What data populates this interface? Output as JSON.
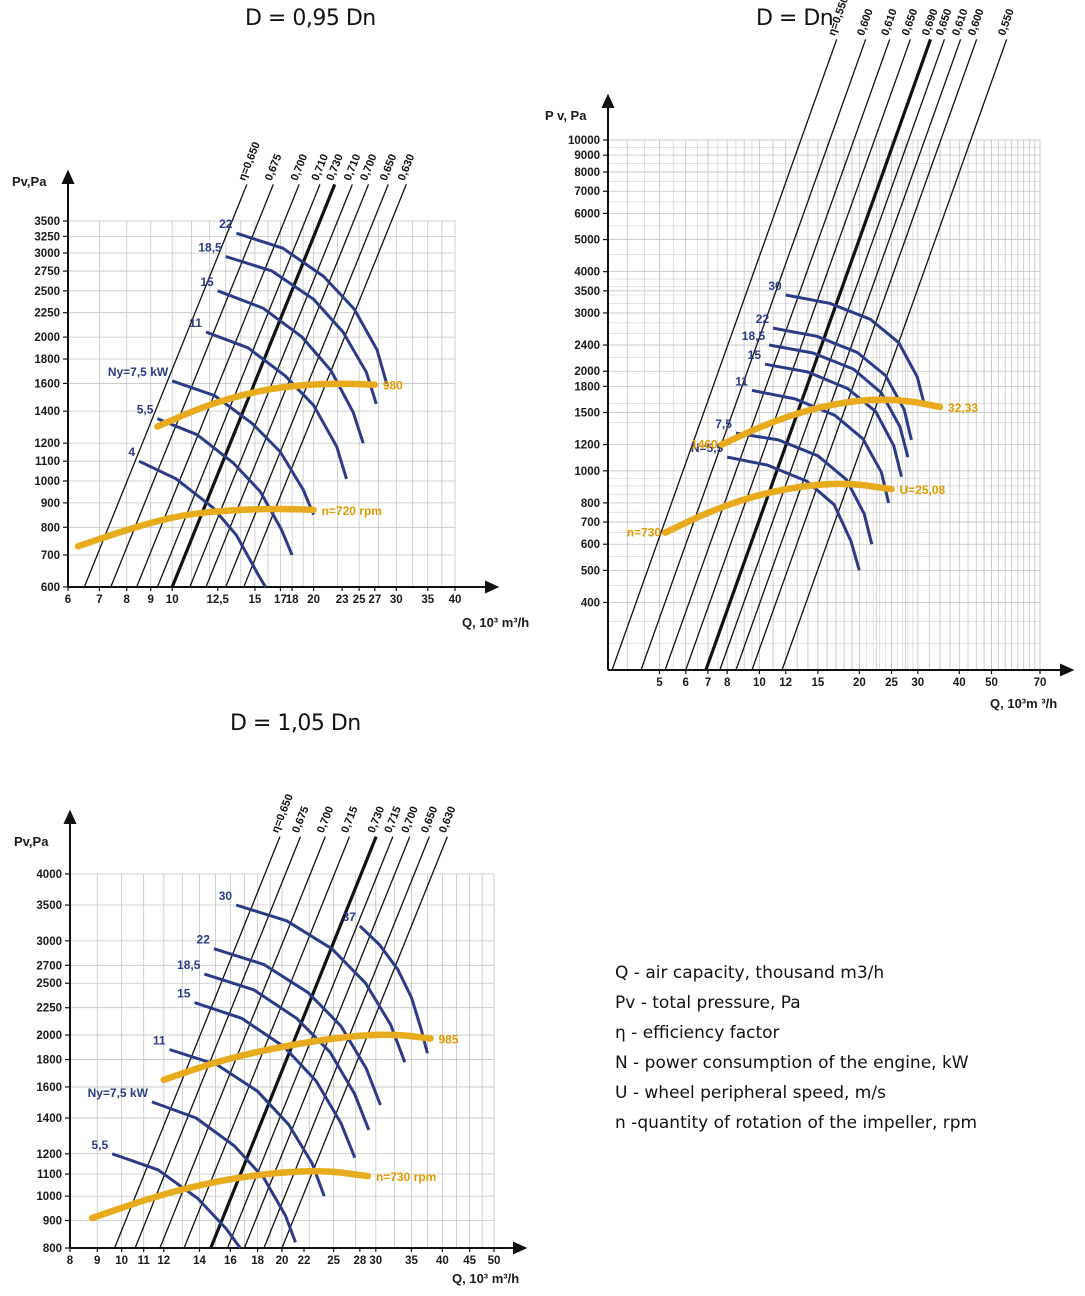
{
  "colors": {
    "grid": "#c5c5c5",
    "axis": "#111111",
    "efficiency": "#111111",
    "power": "#2a3c86",
    "speed": "#e8ab1e",
    "speed_label": "#e39a00"
  },
  "chart_titles": [
    "D = 0,95 Dn",
    "D = Dn",
    "D = 1,05 Dn"
  ],
  "legend": [
    "Q - air capacity, thousand m3/h",
    "Pv - total pressure, Pa",
    "η - efficiency factor",
    "N - power consumption of the engine, kW",
    "U - wheel peripheral speed, m/s",
    "n -quantity of rotation of the impeller, rpm"
  ],
  "chart_data": [
    {
      "type": "line",
      "title": "D = 0,95 Dn",
      "xlabel": "Q, 10³ m³/h",
      "ylabel": "Pv,Pa",
      "xscale": "log",
      "yscale": "log",
      "xlim": [
        6,
        40
      ],
      "ylim": [
        600,
        3500
      ],
      "grid": true,
      "x_ticks": [
        "6",
        "7",
        "8",
        "9",
        "10",
        "12,5",
        "15",
        "17",
        "18",
        "20",
        "23",
        "25",
        "27",
        "30",
        "35",
        "40"
      ],
      "y_ticks": [
        "600",
        "700",
        "800",
        "900",
        "1000",
        "1100",
        "1200",
        "1400",
        "1600",
        "1800",
        "2000",
        "2250",
        "2500",
        "2750",
        "3000",
        "3250",
        "3500"
      ],
      "efficiency_lines": [
        {
          "label": "η=0,650",
          "x_at_ymin": 6.5
        },
        {
          "label": "0,675",
          "x_at_ymin": 7.4
        },
        {
          "label": "0,700",
          "x_at_ymin": 8.4
        },
        {
          "label": "0,710",
          "x_at_ymin": 9.3
        },
        {
          "label": "0,730",
          "x_at_ymin": 10.0,
          "bold": true
        },
        {
          "label": "0,710",
          "x_at_ymin": 10.9
        },
        {
          "label": "0,700",
          "x_at_ymin": 11.8
        },
        {
          "label": "0,650",
          "x_at_ymin": 13.0
        },
        {
          "label": "0,630",
          "x_at_ymin": 14.2
        }
      ],
      "power_curves": [
        {
          "label": "4",
          "points": [
            [
              8.5,
              1100
            ],
            [
              10.2,
              1010
            ],
            [
              12.2,
              880
            ],
            [
              13.7,
              770
            ],
            [
              15.2,
              640
            ],
            [
              15.8,
              600
            ]
          ]
        },
        {
          "label": "5,5",
          "points": [
            [
              9.3,
              1350
            ],
            [
              11.3,
              1250
            ],
            [
              13.5,
              1090
            ],
            [
              15.4,
              950
            ],
            [
              17.1,
              790
            ],
            [
              18.0,
              700
            ]
          ]
        },
        {
          "label": "Ny=7,5 kW",
          "points": [
            [
              10.0,
              1620
            ],
            [
              12.3,
              1510
            ],
            [
              14.8,
              1320
            ],
            [
              17.0,
              1150
            ],
            [
              19.0,
              960
            ],
            [
              20.0,
              850
            ]
          ]
        },
        {
          "label": "11",
          "points": [
            [
              11.8,
              2050
            ],
            [
              14.5,
              1900
            ],
            [
              17.4,
              1660
            ],
            [
              20.0,
              1440
            ],
            [
              22.4,
              1180
            ],
            [
              23.5,
              1010
            ]
          ]
        },
        {
          "label": "15",
          "points": [
            [
              12.5,
              2500
            ],
            [
              15.6,
              2300
            ],
            [
              18.9,
              2000
            ],
            [
              21.8,
              1700
            ],
            [
              24.3,
              1390
            ],
            [
              25.5,
              1200
            ]
          ]
        },
        {
          "label": "18,5",
          "points": [
            [
              13.0,
              2950
            ],
            [
              16.3,
              2750
            ],
            [
              20.0,
              2400
            ],
            [
              23.1,
              2050
            ],
            [
              25.9,
              1690
            ],
            [
              27.2,
              1450
            ]
          ]
        },
        {
          "label": "22",
          "points": [
            [
              13.7,
              3300
            ],
            [
              17.2,
              3070
            ],
            [
              21.0,
              2680
            ],
            [
              24.4,
              2290
            ],
            [
              27.3,
              1880
            ],
            [
              28.6,
              1600
            ]
          ]
        }
      ],
      "speed_curves": [
        {
          "label": "n=720 rpm",
          "points": [
            [
              6.3,
              730
            ],
            [
              8.3,
              800
            ],
            [
              10.5,
              850
            ],
            [
              13.5,
              870
            ],
            [
              16.8,
              875
            ],
            [
              20.0,
              870
            ]
          ]
        },
        {
          "label": "980",
          "points": [
            [
              9.3,
              1300
            ],
            [
              12.0,
              1450
            ],
            [
              15.5,
              1550
            ],
            [
              19.0,
              1590
            ],
            [
              23.0,
              1600
            ],
            [
              27.0,
              1590
            ]
          ]
        }
      ]
    },
    {
      "type": "line",
      "title": "D = Dn",
      "xlabel": "Q, 10³m ³/h",
      "ylabel": "P v, Pa",
      "xscale": "log",
      "yscale": "log",
      "xlim": [
        3.5,
        70
      ],
      "ylim": [
        250,
        10000
      ],
      "grid": true,
      "x_ticks": [
        "5",
        "6",
        "7",
        "8",
        "10",
        "12",
        "15",
        "20",
        "25",
        "30",
        "40",
        "50",
        "70"
      ],
      "y_ticks": [
        "400",
        "500",
        "600",
        "700",
        "800",
        "1000",
        "1200",
        "1500",
        "1800",
        "2000",
        "2400",
        "3000",
        "3500",
        "4000",
        "5000",
        "6000",
        "7000",
        "8000",
        "9000",
        "10000"
      ],
      "efficiency_lines": [
        {
          "label": "η=0,550",
          "x_at_ymin": 3.6
        },
        {
          "label": "0,600",
          "x_at_ymin": 4.4
        },
        {
          "label": "0,610",
          "x_at_ymin": 5.2
        },
        {
          "label": "0,650",
          "x_at_ymin": 6.0
        },
        {
          "label": "0,690",
          "x_at_ymin": 6.9,
          "bold": true
        },
        {
          "label": "0,650",
          "x_at_ymin": 7.6
        },
        {
          "label": "0,610",
          "x_at_ymin": 8.5
        },
        {
          "label": "0,600",
          "x_at_ymin": 9.5
        },
        {
          "label": "0,550",
          "x_at_ymin": 11.7
        }
      ],
      "power_curves": [
        {
          "label": "N=5,5",
          "points": [
            [
              8.0,
              1100
            ],
            [
              10.6,
              1040
            ],
            [
              13.9,
              930
            ],
            [
              16.8,
              790
            ],
            [
              18.9,
              610
            ],
            [
              20.0,
              500
            ]
          ]
        },
        {
          "label": "7,5",
          "points": [
            [
              8.5,
              1300
            ],
            [
              11.4,
              1240
            ],
            [
              15.0,
              1110
            ],
            [
              18.3,
              940
            ],
            [
              20.7,
              740
            ],
            [
              21.8,
              600
            ]
          ]
        },
        {
          "label": "11",
          "points": [
            [
              9.5,
              1750
            ],
            [
              12.8,
              1650
            ],
            [
              16.9,
              1470
            ],
            [
              20.5,
              1250
            ],
            [
              23.3,
              990
            ],
            [
              24.5,
              800
            ]
          ]
        },
        {
          "label": "15",
          "points": [
            [
              10.4,
              2100
            ],
            [
              14.0,
              1990
            ],
            [
              18.5,
              1770
            ],
            [
              22.4,
              1510
            ],
            [
              25.4,
              1190
            ],
            [
              26.8,
              960
            ]
          ]
        },
        {
          "label": "18,5",
          "points": [
            [
              10.7,
              2400
            ],
            [
              14.5,
              2270
            ],
            [
              19.2,
              2030
            ],
            [
              23.3,
              1720
            ],
            [
              26.5,
              1360
            ],
            [
              28.0,
              1100
            ]
          ]
        },
        {
          "label": "22",
          "points": [
            [
              11.0,
              2700
            ],
            [
              14.9,
              2550
            ],
            [
              19.7,
              2280
            ],
            [
              24.0,
              1940
            ],
            [
              27.3,
              1530
            ],
            [
              28.7,
              1240
            ]
          ]
        },
        {
          "label": "30",
          "points": [
            [
              12.0,
              3400
            ],
            [
              16.3,
              3210
            ],
            [
              21.6,
              2870
            ],
            [
              26.3,
              2440
            ],
            [
              29.9,
              1920
            ],
            [
              31.5,
              1560
            ]
          ]
        }
      ],
      "speed_curves": [
        {
          "label": "n=730",
          "points": [
            [
              5.2,
              650
            ],
            [
              7.0,
              750
            ],
            [
              9.6,
              840
            ],
            [
              13.4,
              900
            ],
            [
              18.4,
              920
            ],
            [
              25.0,
              880
            ]
          ]
        },
        {
          "label": "1460",
          "points": [
            [
              7.7,
              1200
            ],
            [
              10.4,
              1380
            ],
            [
              14.3,
              1540
            ],
            [
              20.0,
              1640
            ],
            [
              27.0,
              1640
            ],
            [
              35.0,
              1560
            ]
          ]
        }
      ],
      "annotations": [
        "U=25,08",
        "32,33"
      ]
    },
    {
      "type": "line",
      "title": "D = 1,05 Dn",
      "xlabel": "Q, 10³ m³/h",
      "ylabel": "Pv,Pa",
      "xscale": "log",
      "yscale": "log",
      "xlim": [
        8,
        50
      ],
      "ylim": [
        800,
        4000
      ],
      "grid": true,
      "x_ticks": [
        "8",
        "9",
        "10",
        "11",
        "12",
        "14",
        "16",
        "18",
        "20",
        "22",
        "25",
        "28",
        "30",
        "35",
        "40",
        "45",
        "50"
      ],
      "y_ticks": [
        "800",
        "900",
        "1000",
        "1100",
        "1200",
        "1400",
        "1600",
        "1800",
        "2000",
        "2250",
        "2500",
        "2700",
        "3000",
        "3500",
        "4000"
      ],
      "efficiency_lines": [
        {
          "label": "η=0,650",
          "x_at_ymin": 9.7
        },
        {
          "label": "0,675",
          "x_at_ymin": 10.6
        },
        {
          "label": "0,700",
          "x_at_ymin": 11.8
        },
        {
          "label": "0,715",
          "x_at_ymin": 13.1
        },
        {
          "label": "0,730",
          "x_at_ymin": 14.7,
          "bold": true
        },
        {
          "label": "0,715",
          "x_at_ymin": 15.8
        },
        {
          "label": "0,700",
          "x_at_ymin": 17.0
        },
        {
          "label": "0,650",
          "x_at_ymin": 18.5
        },
        {
          "label": "0,630",
          "x_at_ymin": 20.0
        }
      ],
      "power_curves": [
        {
          "label": "5,5",
          "points": [
            [
              9.6,
              1200
            ],
            [
              11.7,
              1120
            ],
            [
              13.9,
              990
            ],
            [
              15.7,
              870
            ],
            [
              16.7,
              800
            ]
          ]
        },
        {
          "label": "Ny=7,5 kW",
          "points": [
            [
              11.4,
              1500
            ],
            [
              13.8,
              1400
            ],
            [
              16.3,
              1240
            ],
            [
              18.5,
              1080
            ],
            [
              20.3,
              920
            ],
            [
              21.2,
              820
            ]
          ]
        },
        {
          "label": "11",
          "points": [
            [
              12.3,
              1880
            ],
            [
              15.1,
              1760
            ],
            [
              18.0,
              1570
            ],
            [
              20.6,
              1360
            ],
            [
              22.8,
              1150
            ],
            [
              24.0,
              1000
            ]
          ]
        },
        {
          "label": "15",
          "points": [
            [
              13.7,
              2300
            ],
            [
              16.8,
              2150
            ],
            [
              20.2,
              1900
            ],
            [
              23.2,
              1640
            ],
            [
              25.8,
              1370
            ],
            [
              27.4,
              1180
            ]
          ]
        },
        {
          "label": "18,5",
          "points": [
            [
              14.3,
              2600
            ],
            [
              17.7,
              2430
            ],
            [
              21.3,
              2150
            ],
            [
              24.6,
              1860
            ],
            [
              27.4,
              1550
            ],
            [
              29.1,
              1330
            ]
          ]
        },
        {
          "label": "22",
          "points": [
            [
              14.9,
              2900
            ],
            [
              18.5,
              2710
            ],
            [
              22.4,
              2400
            ],
            [
              25.8,
              2080
            ],
            [
              28.8,
              1730
            ],
            [
              30.6,
              1480
            ]
          ]
        },
        {
          "label": "30",
          "points": [
            [
              16.4,
              3500
            ],
            [
              20.4,
              3270
            ],
            [
              24.8,
              2900
            ],
            [
              28.7,
              2500
            ],
            [
              32.0,
              2090
            ],
            [
              34.0,
              1780
            ]
          ]
        },
        {
          "label": "37",
          "points": [
            [
              28.0,
              3200
            ],
            [
              30.5,
              2950
            ],
            [
              33.0,
              2650
            ],
            [
              35.0,
              2350
            ],
            [
              36.5,
              2050
            ],
            [
              37.5,
              1850
            ]
          ]
        }
      ],
      "speed_curves": [
        {
          "label": "n=730 rpm",
          "points": [
            [
              8.8,
              910
            ],
            [
              11.6,
              1000
            ],
            [
              15.2,
              1070
            ],
            [
              20.0,
              1110
            ],
            [
              24.5,
              1115
            ],
            [
              29.0,
              1090
            ]
          ]
        },
        {
          "label": "985",
          "points": [
            [
              12.0,
              1650
            ],
            [
              15.5,
              1800
            ],
            [
              20.3,
              1910
            ],
            [
              26.5,
              1990
            ],
            [
              32.5,
              2010
            ],
            [
              38.0,
              1970
            ]
          ]
        }
      ]
    }
  ]
}
